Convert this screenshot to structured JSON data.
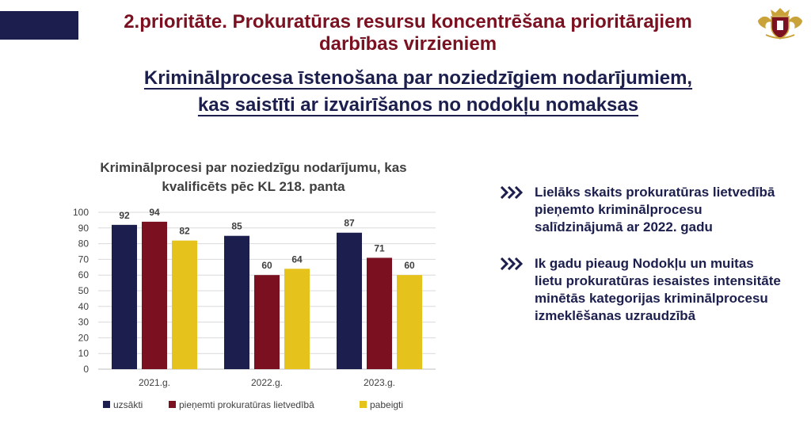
{
  "header": {
    "title_line1": "2.prioritāte. Prokuratūras resursu koncentrēšana prioritārajiem",
    "title_line2": "darbības virzieniem",
    "subtitle_line1": "Kriminālprocesa īstenošana par noziedzīgiem nodarījumiem,",
    "subtitle_line2": "kas saistīti ar izvairīšanos no nodokļu nomaksas"
  },
  "chart_data": {
    "type": "bar",
    "title_line1": "Kriminālprocesi par noziedzīgu nodarījumu, kas",
    "title_line2": "kvalificēts pēc KL 218. panta",
    "categories": [
      "2021.g.",
      "2022.g.",
      "2023.g."
    ],
    "series": [
      {
        "name": "uzsākti",
        "values": [
          92,
          85,
          87
        ],
        "color": "#1c1f4d"
      },
      {
        "name": "pieņemti prokuratūras lietvedībā",
        "values": [
          94,
          60,
          71
        ],
        "color": "#7a1020"
      },
      {
        "name": "pabeigti",
        "values": [
          82,
          64,
          60
        ],
        "color": "#e6c21c"
      }
    ],
    "ylim": [
      0,
      100
    ],
    "yticks": [
      0,
      10,
      20,
      30,
      40,
      50,
      60,
      70,
      80,
      90,
      100
    ],
    "grid": true,
    "legend": "bottom"
  },
  "bullets": [
    {
      "text": "Lielāks skaits prokuratūras lietvedībā pieņemto kriminālprocesu salīdzinājumā ar 2022. gadu"
    },
    {
      "text": "Ik gadu pieaug Nodokļu un muitas lietu prokuratūras iesaistes intensitāte minētās kategorijas kriminālprocesu izmeklēšanas uzraudzībā"
    }
  ],
  "colors": {
    "navy": "#1c1f4d",
    "maroon": "#7a1020",
    "yellow": "#e6c21c",
    "gold": "#c9a33a"
  },
  "icons": {
    "bullet": "double-chevron-right-icon",
    "logo": "prosecutor-office-emblem-icon"
  }
}
